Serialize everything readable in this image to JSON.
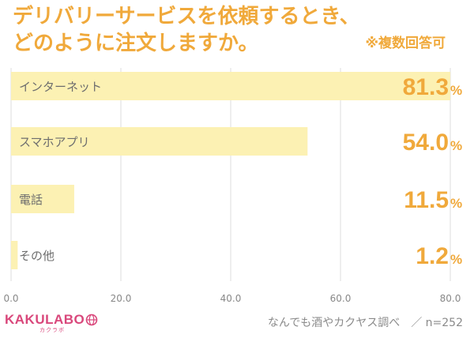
{
  "title_line1": "デリバリーサービスを依頼するとき、",
  "title_line2": "どのように注文しますか。",
  "note": "※複数回答可",
  "logo": {
    "text": "KAKULABO",
    "sub": "カクラボ",
    "icon": "globe-icon",
    "color": "#d9477b"
  },
  "source": "なんでも酒やカクヤス調べ　／ n=252",
  "colors": {
    "title": "#f0a93b",
    "bar": "#fcf1b3",
    "value": "#f0a93b",
    "grid": "#dedede",
    "category": "#6e6e6e",
    "tick": "#888888"
  },
  "chart_data": {
    "type": "bar",
    "orientation": "horizontal",
    "categories": [
      "インターネット",
      "スマホアプリ",
      "電話",
      "その他"
    ],
    "values": [
      81.3,
      54.0,
      11.5,
      1.2
    ],
    "value_labels": [
      "81.3",
      "54.0",
      "11.5",
      "1.2"
    ],
    "unit": "%",
    "xlim": [
      0,
      80
    ],
    "ticks": [
      "0.0",
      "20.0",
      "40.0",
      "60.0",
      "80.0"
    ],
    "grid": true
  }
}
